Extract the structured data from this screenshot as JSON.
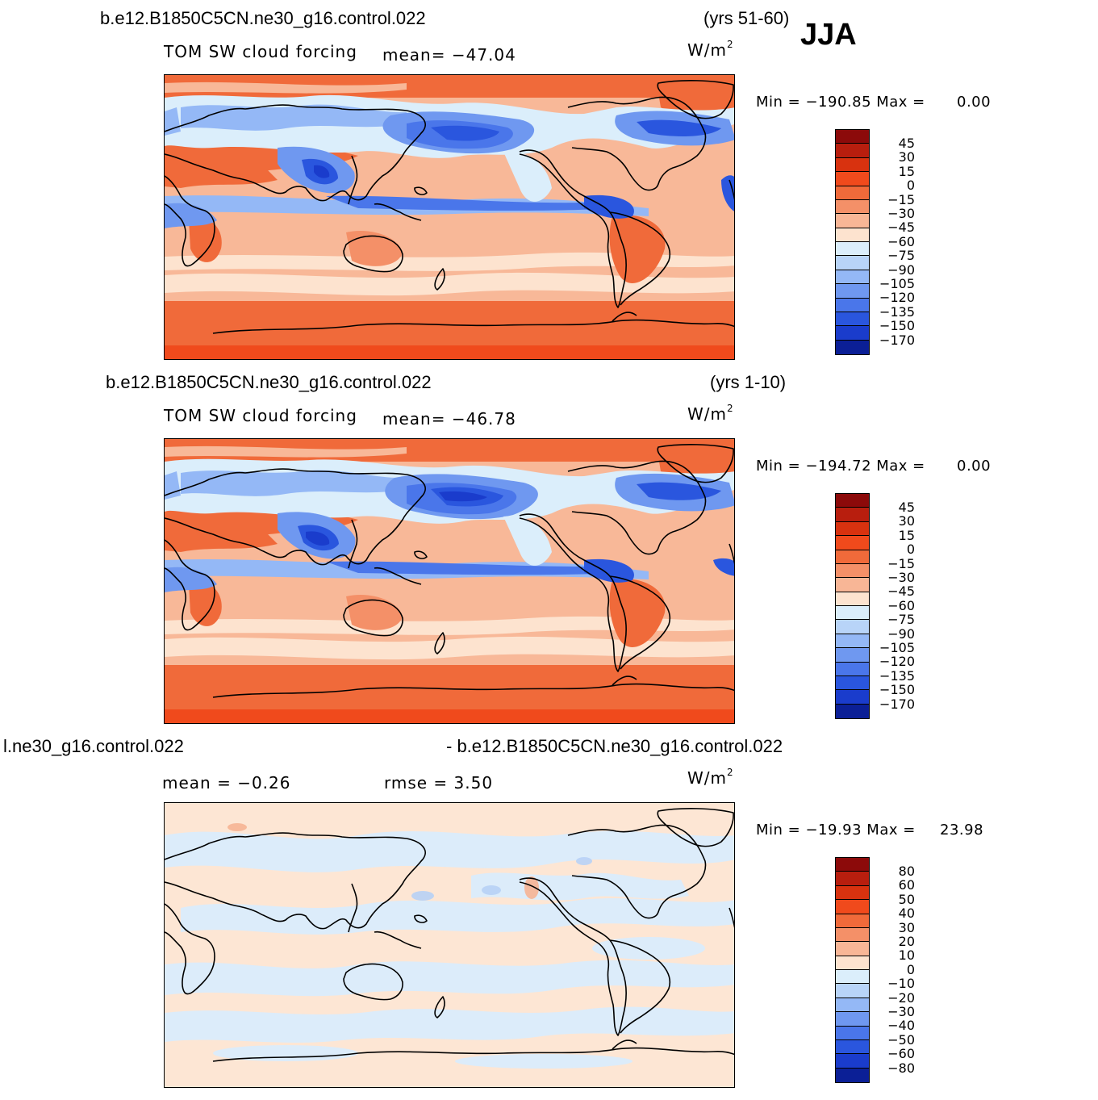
{
  "season": "JJA",
  "units": {
    "base": "W/m",
    "sup": "2"
  },
  "panels": [
    {
      "case_title": "b.e12.B1850C5CN.ne30_g16.control.022",
      "years": "(yrs 51-60)",
      "variable": "TOM SW cloud forcing",
      "stat1": "mean=  −47.04",
      "stat2": "",
      "min_label": "Min  =  −190.85  Max  =",
      "max_value": "0.00",
      "colorbar": {
        "labels": [
          "45",
          "30",
          "15",
          "0",
          "−15",
          "−30",
          "−45",
          "−60",
          "−75",
          "−90",
          "−105",
          "−120",
          "−135",
          "−150",
          "−170"
        ],
        "colors": [
          "#8c0a0a",
          "#b81e0e",
          "#d8320f",
          "#f04a1c",
          "#f06a3a",
          "#f49068",
          "#f8b696",
          "#fde3cf",
          "#dbeefb",
          "#b8d4f8",
          "#94b8f6",
          "#6f98f0",
          "#4a76ea",
          "#2a56de",
          "#1a3ccc",
          "#0b1f96"
        ]
      }
    },
    {
      "case_title": "b.e12.B1850C5CN.ne30_g16.control.022",
      "years": "(yrs 1-10)",
      "variable": "TOM SW cloud forcing",
      "stat1": "mean=  −46.78",
      "stat2": "",
      "min_label": "Min  =  −194.72  Max  =",
      "max_value": "0.00",
      "colorbar": {
        "labels": [
          "45",
          "30",
          "15",
          "0",
          "−15",
          "−30",
          "−45",
          "−60",
          "−75",
          "−90",
          "−105",
          "−120",
          "−135",
          "−150",
          "−170"
        ],
        "colors": [
          "#8c0a0a",
          "#b81e0e",
          "#d8320f",
          "#f04a1c",
          "#f06a3a",
          "#f49068",
          "#f8b696",
          "#fde3cf",
          "#dbeefb",
          "#b8d4f8",
          "#94b8f6",
          "#6f98f0",
          "#4a76ea",
          "#2a56de",
          "#1a3ccc",
          "#0b1f96"
        ]
      }
    },
    {
      "case_title_left": "l.ne30_g16.control.022",
      "case_title_right": "- b.e12.B1850C5CN.ne30_g16.control.022",
      "stat1": "mean  =      −0.26",
      "stat2": "rmse  =      3.50",
      "min_label": "Min  =  −19.93  Max  =",
      "max_value": "23.98",
      "colorbar": {
        "labels": [
          "80",
          "60",
          "50",
          "40",
          "30",
          "20",
          "10",
          "0",
          "−10",
          "−20",
          "−30",
          "−40",
          "−50",
          "−60",
          "−80"
        ],
        "colors": [
          "#8c0a0a",
          "#b81e0e",
          "#d8320f",
          "#f04a1c",
          "#f06a3a",
          "#f49068",
          "#f8b696",
          "#fde3cf",
          "#dbeefb",
          "#b8d4f8",
          "#94b8f6",
          "#6f98f0",
          "#4a76ea",
          "#2a56de",
          "#1a3ccc",
          "#0b1f96"
        ]
      }
    }
  ]
}
